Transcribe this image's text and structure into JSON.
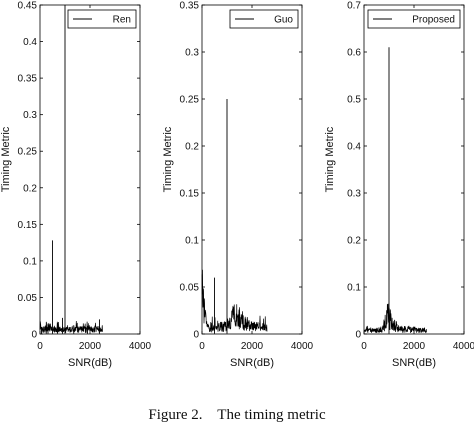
{
  "caption": {
    "figure_label": "Figure 2.",
    "title": "The timing metric"
  },
  "chart_data": [
    {
      "type": "line",
      "xlabel": "SNR(dB)",
      "ylabel": "Timing Metric",
      "xlim": [
        0,
        4000
      ],
      "ylim": [
        0,
        0.45
      ],
      "xticks": [
        0,
        2000,
        4000
      ],
      "yticks": [
        0,
        0.05,
        0.1,
        0.15,
        0.2,
        0.25,
        0.3,
        0.35,
        0.4,
        0.45
      ],
      "xtick_labels": [
        "0",
        "2000",
        "4000"
      ],
      "ytick_labels": [
        "0",
        "0.05",
        "0.1",
        "0.15",
        "0.2",
        "0.25",
        "0.3",
        "0.35",
        "0.4",
        "0.45"
      ],
      "legend": "top-right",
      "grid": false,
      "series": [
        {
          "name": "Ren",
          "color": "#000000",
          "noise": {
            "x_range": [
              0,
              2500
            ],
            "typical_level": 0.006,
            "max_level": 0.018
          },
          "spikes": [
            {
              "x": 60,
              "y": 0.008
            },
            {
              "x": 250,
              "y": 0.01
            },
            {
              "x": 320,
              "y": 0.012
            },
            {
              "x": 500,
              "y": 0.128
            },
            {
              "x": 700,
              "y": 0.015
            },
            {
              "x": 900,
              "y": 0.022
            },
            {
              "x": 1000,
              "y": 0.45
            },
            {
              "x": 1350,
              "y": 0.012
            },
            {
              "x": 1900,
              "y": 0.011
            },
            {
              "x": 2380,
              "y": 0.02
            }
          ]
        }
      ]
    },
    {
      "type": "line",
      "xlabel": "SNR(dB)",
      "ylabel": "Timing Metric",
      "xlim": [
        0,
        4000
      ],
      "ylim": [
        0,
        0.35
      ],
      "xticks": [
        0,
        2000,
        4000
      ],
      "yticks": [
        0,
        0.05,
        0.1,
        0.15,
        0.2,
        0.25,
        0.3,
        0.35
      ],
      "xtick_labels": [
        "0",
        "2000",
        "4000"
      ],
      "ytick_labels": [
        "0",
        "0.05",
        "0.1",
        "0.15",
        "0.2",
        "0.25",
        "0.3",
        "0.35"
      ],
      "legend": "top-right",
      "grid": false,
      "series": [
        {
          "name": "Guo",
          "color": "#000000",
          "noise": {
            "x_range": [
              0,
              2600
            ],
            "typical_level": 0.006,
            "max_level": 0.02
          },
          "envelope": [
            {
              "x": 0,
              "y": 0.058
            },
            {
              "x": 40,
              "y": 0.05
            },
            {
              "x": 80,
              "y": 0.03
            },
            {
              "x": 120,
              "y": 0.016
            },
            {
              "x": 200,
              "y": 0.008
            },
            {
              "x": 300,
              "y": 0.004
            },
            {
              "x": 1100,
              "y": 0.01
            },
            {
              "x": 1250,
              "y": 0.02
            },
            {
              "x": 1450,
              "y": 0.018
            },
            {
              "x": 1700,
              "y": 0.012
            },
            {
              "x": 2000,
              "y": 0.008
            },
            {
              "x": 2600,
              "y": 0.006
            }
          ],
          "spikes": [
            {
              "x": 500,
              "y": 0.06
            },
            {
              "x": 1000,
              "y": 0.25
            }
          ]
        }
      ]
    },
    {
      "type": "line",
      "xlabel": "SNR(dB)",
      "ylabel": "Timing Metric",
      "xlim": [
        0,
        4000
      ],
      "ylim": [
        0,
        0.7
      ],
      "xticks": [
        0,
        2000,
        4000
      ],
      "yticks": [
        0,
        0.1,
        0.2,
        0.3,
        0.4,
        0.5,
        0.6,
        0.7
      ],
      "xtick_labels": [
        "0",
        "2000",
        "4000"
      ],
      "ytick_labels": [
        "0",
        "0.1",
        "0.2",
        "0.3",
        "0.4",
        "0.5",
        "0.6",
        "0.7"
      ],
      "legend": "top-right",
      "grid": false,
      "series": [
        {
          "name": "Proposed",
          "color": "#000000",
          "noise": {
            "x_range": [
              0,
              2500
            ],
            "typical_level": 0.008,
            "max_level": 0.018
          },
          "envelope": [
            {
              "x": 0,
              "y": 0.006
            },
            {
              "x": 700,
              "y": 0.01
            },
            {
              "x": 850,
              "y": 0.025
            },
            {
              "x": 950,
              "y": 0.04
            },
            {
              "x": 1050,
              "y": 0.03
            },
            {
              "x": 1200,
              "y": 0.018
            },
            {
              "x": 1500,
              "y": 0.01
            },
            {
              "x": 2500,
              "y": 0.008
            }
          ],
          "spikes": [
            {
              "x": 1000,
              "y": 0.61
            }
          ]
        }
      ]
    }
  ]
}
